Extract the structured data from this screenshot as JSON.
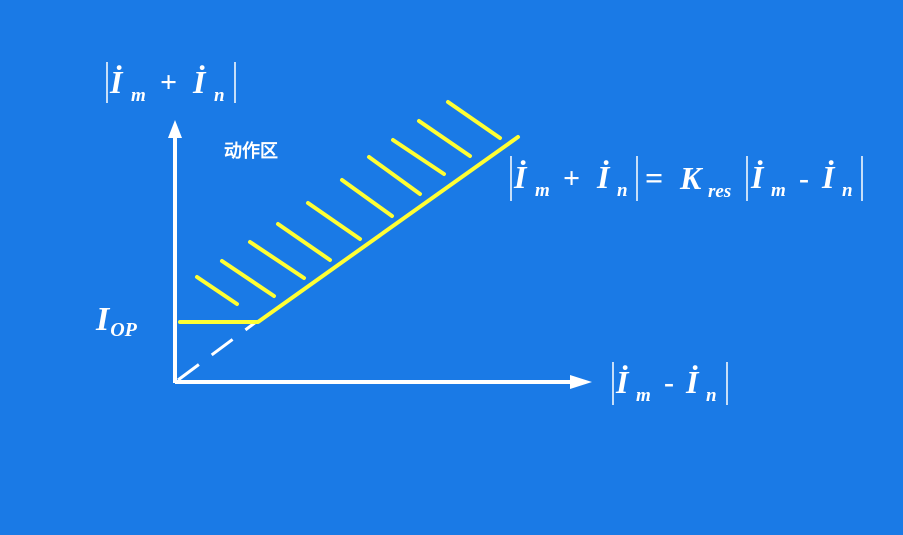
{
  "diagram": {
    "background_color": "#1a7ae6",
    "curve_color": "#ffff33",
    "axis_color": "#ffffff",
    "operating_region_label": "动作区",
    "pickup_current_label": {
      "symbol": "I",
      "subscript": "OP"
    },
    "y_axis_label": {
      "symbol": "İ",
      "subscript_1": "m",
      "operator": "+",
      "subscript_2": "n"
    },
    "x_axis_label": {
      "symbol": "İ",
      "subscript_1": "m",
      "operator": "-",
      "subscript_2": "n"
    },
    "characteristic_equation": {
      "lhs_operator": "+",
      "equals": "=",
      "coefficient": "K",
      "coefficient_subscript": "res",
      "rhs_operator": "-",
      "symbol": "İ",
      "subscript_1": "m",
      "subscript_2": "n"
    }
  }
}
